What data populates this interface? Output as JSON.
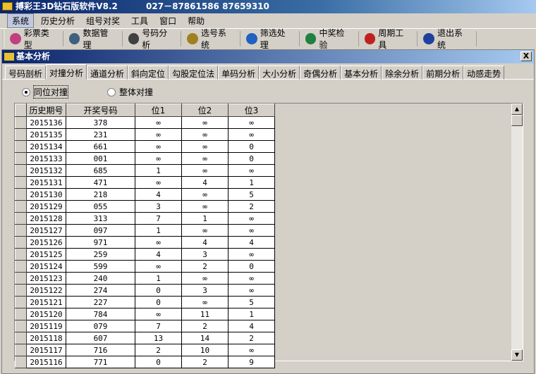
{
  "app": {
    "title": "搏彩王3D钻石版软件V8.2",
    "phone": "027－87861586 87659310"
  },
  "menu": [
    "系统",
    "历史分析",
    "组号对奖",
    "工具",
    "窗口",
    "帮助"
  ],
  "toolbar": [
    {
      "label": "彩票类型",
      "icon": "palette-icon",
      "color": "#c04080"
    },
    {
      "label": "数据管理",
      "icon": "magnifier-icon",
      "color": "#406080"
    },
    {
      "label": "号码分析",
      "icon": "binoculars-icon",
      "color": "#404040"
    },
    {
      "label": "选号系统",
      "icon": "globe-icon",
      "color": "#a08020"
    },
    {
      "label": "筛选处理",
      "icon": "filter-icon",
      "color": "#2060c0"
    },
    {
      "label": "中奖检验",
      "icon": "trophy-icon",
      "color": "#208040"
    },
    {
      "label": "周期工具",
      "icon": "cycle-icon",
      "color": "#c02020"
    },
    {
      "label": "退出系统",
      "icon": "exit-door-icon",
      "color": "#2040a0"
    }
  ],
  "window": {
    "title": "基本分析",
    "close": "X"
  },
  "tabs": [
    "号码剖析",
    "对撞分析",
    "通道分析",
    "斜向定位",
    "勾股定位法",
    "单码分析",
    "大小分析",
    "奇偶分析",
    "基本分析",
    "除余分析",
    "前期分析",
    "动感走势"
  ],
  "active_tab": 1,
  "radios": [
    {
      "label": "同位对撞",
      "checked": true
    },
    {
      "label": "整体对撞",
      "checked": false
    }
  ],
  "table": {
    "columns": [
      "历史期号",
      "开奖号码",
      "位1",
      "位2",
      "位3"
    ],
    "rows": [
      [
        "2015136",
        "378",
        "∞",
        "∞",
        "∞"
      ],
      [
        "2015135",
        "231",
        "∞",
        "∞",
        "∞"
      ],
      [
        "2015134",
        "661",
        "∞",
        "∞",
        "0"
      ],
      [
        "2015133",
        "001",
        "∞",
        "∞",
        "0"
      ],
      [
        "2015132",
        "685",
        "1",
        "∞",
        "∞"
      ],
      [
        "2015131",
        "471",
        "∞",
        "4",
        "1"
      ],
      [
        "2015130",
        "218",
        "4",
        "∞",
        "5"
      ],
      [
        "2015129",
        "055",
        "3",
        "∞",
        "2"
      ],
      [
        "2015128",
        "313",
        "7",
        "1",
        "∞"
      ],
      [
        "2015127",
        "097",
        "1",
        "∞",
        "∞"
      ],
      [
        "2015126",
        "971",
        "∞",
        "4",
        "4"
      ],
      [
        "2015125",
        "259",
        "4",
        "3",
        "∞"
      ],
      [
        "2015124",
        "599",
        "∞",
        "2",
        "0"
      ],
      [
        "2015123",
        "240",
        "1",
        "∞",
        "∞"
      ],
      [
        "2015122",
        "274",
        "0",
        "3",
        "∞"
      ],
      [
        "2015121",
        "227",
        "0",
        "∞",
        "5"
      ],
      [
        "2015120",
        "784",
        "∞",
        "11",
        "1"
      ],
      [
        "2015119",
        "079",
        "7",
        "2",
        "4"
      ],
      [
        "2015118",
        "607",
        "13",
        "14",
        "2"
      ],
      [
        "2015117",
        "716",
        "2",
        "10",
        "∞"
      ],
      [
        "2015116",
        "771",
        "0",
        "2",
        "9"
      ]
    ]
  }
}
